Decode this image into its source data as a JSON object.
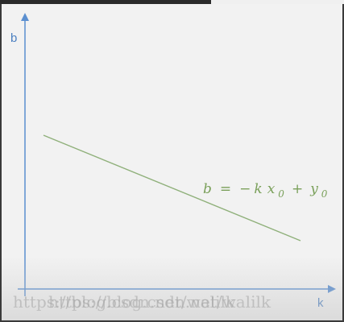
{
  "diagram": {
    "y_axis_label": "b",
    "x_axis_label": "k",
    "equation": {
      "lhs": "b",
      "equals": "=",
      "minus": "−",
      "k": "k",
      "x": "x",
      "x_sub": "0",
      "plus": "+",
      "y": "y",
      "y_sub": "0"
    },
    "colors": {
      "axis": "#5b8fd0",
      "line": "#8fb07a",
      "equation": "#7aa05a"
    }
  },
  "watermark": {
    "text_a": "https://blog.csdn.net/walilk",
    "text_b": "https://blog.csdn.net/walilk"
  }
}
